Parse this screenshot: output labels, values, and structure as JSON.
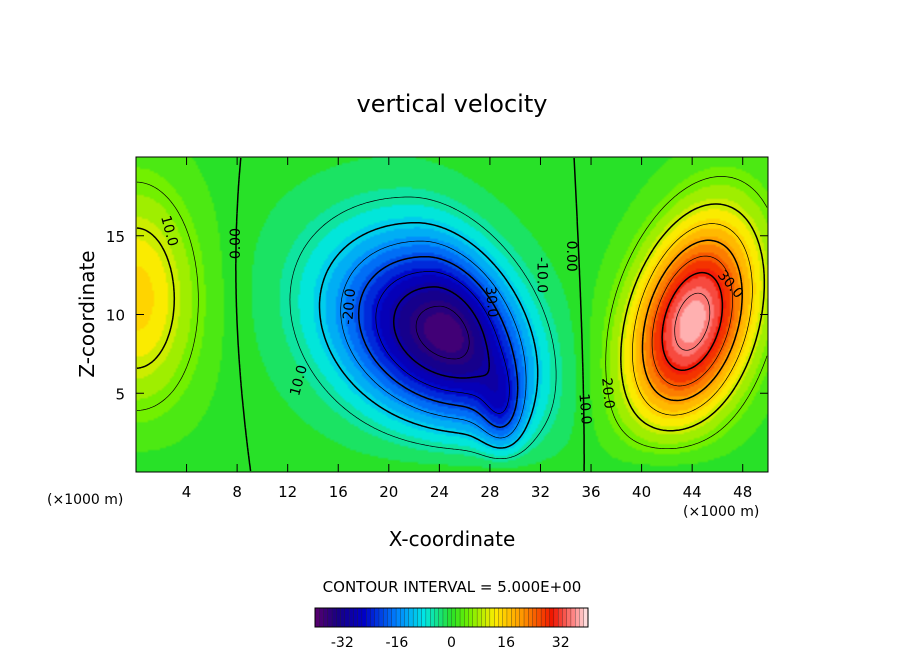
{
  "chart_data": {
    "type": "heatmap",
    "subtype": "filled-contour",
    "title": "vertical velocity",
    "xlabel": "X-coordinate",
    "ylabel": "Z-coordinate",
    "x_units_left": "(×1000 m)",
    "x_units_right": "(×1000 m)",
    "xlim": [
      0,
      50
    ],
    "ylim": [
      0,
      20
    ],
    "x_ticks": [
      "4",
      "8",
      "12",
      "16",
      "20",
      "24",
      "28",
      "32",
      "36",
      "40",
      "44",
      "48"
    ],
    "y_ticks": [
      "5",
      "10",
      "15"
    ],
    "x_tick_values": [
      4,
      8,
      12,
      16,
      20,
      24,
      28,
      32,
      36,
      40,
      44,
      48
    ],
    "y_tick_values": [
      5,
      10,
      15
    ],
    "contour_interval_text": "CONTOUR INTERVAL = 5.000E+00",
    "contour_interval": 5.0,
    "colorbar": {
      "range": [
        -40,
        40
      ],
      "tick_labels": [
        "-32",
        "-16",
        "0",
        "16",
        "32"
      ],
      "tick_values": [
        -32,
        -16,
        0,
        16,
        32
      ],
      "colormap": "rainbow"
    },
    "field_features": [
      {
        "type": "updraft",
        "cx": 0,
        "cz": 11,
        "peak": 15
      },
      {
        "type": "downdraft",
        "cx": 24.5,
        "cz": 8.8,
        "peak": -36
      },
      {
        "type": "updraft",
        "cx": 44,
        "cz": 9.5,
        "peak": 37
      }
    ],
    "contour_labels": [
      {
        "text": "10.0",
        "x": 2.6,
        "z": 15.3,
        "rotate": 75
      },
      {
        "text": "0.00",
        "x": 7.9,
        "z": 14.5,
        "rotate": -90
      },
      {
        "text": "-20.0",
        "x": 16.9,
        "z": 10.5,
        "rotate": -85
      },
      {
        "text": "10.0",
        "x": 12.9,
        "z": 5.8,
        "rotate": -75
      },
      {
        "text": "30.0",
        "x": 28.1,
        "z": 10.8,
        "rotate": 85
      },
      {
        "text": "-10.0",
        "x": 32.1,
        "z": 12.5,
        "rotate": 90
      },
      {
        "text": "0.00",
        "x": 34.4,
        "z": 13.7,
        "rotate": 90
      },
      {
        "text": "30.0",
        "x": 47.0,
        "z": 11.9,
        "rotate": 50
      },
      {
        "text": "20.0",
        "x": 37.3,
        "z": 5.0,
        "rotate": 85
      },
      {
        "text": "10.0",
        "x": 35.5,
        "z": 4.0,
        "rotate": 85
      }
    ]
  }
}
